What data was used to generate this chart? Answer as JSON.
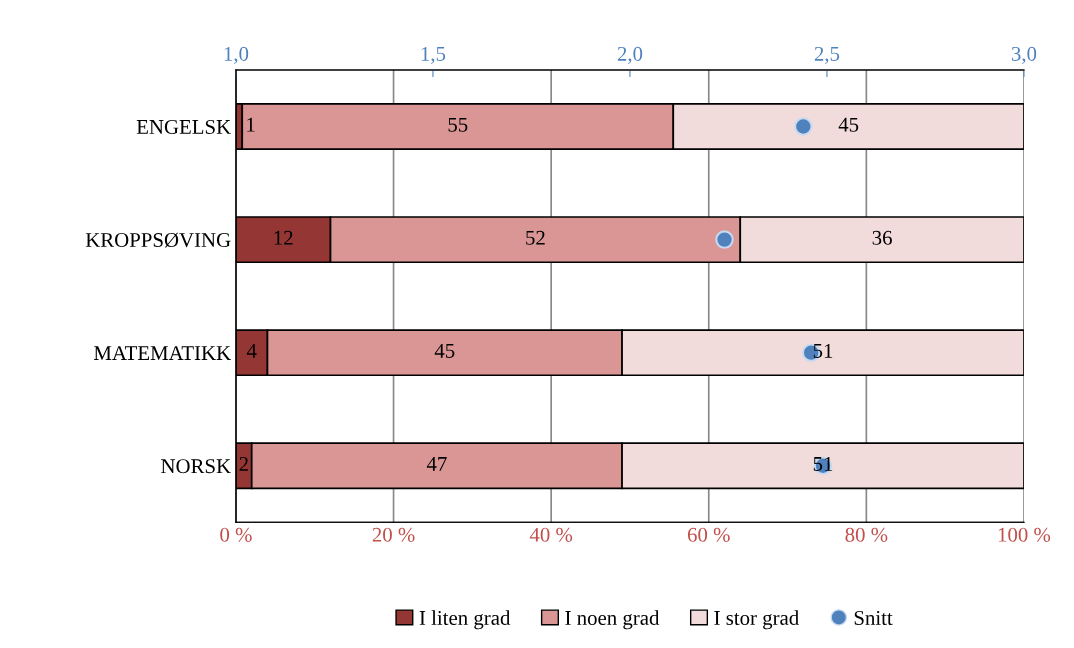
{
  "chart_data": {
    "type": "bar",
    "orientation": "horizontal",
    "stacked": true,
    "categories": [
      "ENGELSK",
      "KROPPSØVING",
      "MATEMATIKK",
      "NORSK"
    ],
    "series": [
      {
        "name": "I liten grad",
        "color": "#943634",
        "values": [
          0.8,
          12,
          4,
          2
        ],
        "value_labels": [
          "1",
          "12",
          "4",
          "2"
        ]
      },
      {
        "name": "I noen grad",
        "color": "#d99694",
        "values": [
          54.7,
          52,
          45,
          47
        ],
        "value_labels": [
          "55",
          "52",
          "45",
          "47"
        ]
      },
      {
        "name": "I stor grad",
        "color": "#f2dcdb",
        "values": [
          44.5,
          36,
          51,
          51
        ],
        "value_labels": [
          "45",
          "36",
          "51",
          "51"
        ]
      },
      {
        "name": "Snitt",
        "type": "scatter",
        "axis": "x2",
        "color": "#4f81bd",
        "marker": "circle",
        "values": [
          2.44,
          2.24,
          2.46,
          2.49
        ]
      }
    ],
    "xlim": [
      0,
      100
    ],
    "xticks": [
      {
        "value": 0,
        "label": "0 %"
      },
      {
        "value": 20,
        "label": "20 %"
      },
      {
        "value": 40,
        "label": "40 %"
      },
      {
        "value": 60,
        "label": "60 %"
      },
      {
        "value": 80,
        "label": "80 %"
      },
      {
        "value": 100,
        "label": "100 %"
      }
    ],
    "x2lim": [
      1,
      3
    ],
    "x2ticks": [
      {
        "value": 1,
        "label": "1,0"
      },
      {
        "value": 1.5,
        "label": "1,5"
      },
      {
        "value": 2,
        "label": "2,0"
      },
      {
        "value": 2.5,
        "label": "2,5"
      },
      {
        "value": 3,
        "label": "3,0"
      }
    ],
    "grid": "x",
    "legend": "bottom"
  }
}
